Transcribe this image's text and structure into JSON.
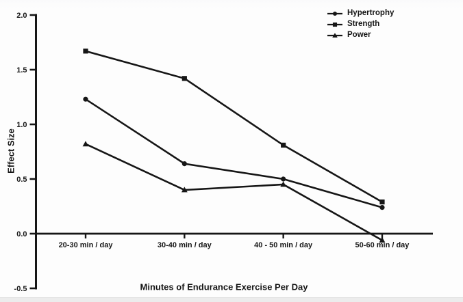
{
  "colors": {
    "ink": "#161616",
    "background": "#fdfdfd",
    "bottom_strip": "#ececec"
  },
  "legend": {
    "items": [
      "Hypertrophy",
      "Strength",
      "Power"
    ]
  },
  "chart_data": {
    "type": "line",
    "title": "",
    "xlabel": "Minutes of Endurance Exercise Per Day",
    "ylabel": "Effect Size",
    "categories": [
      "20-30 min / day",
      "30-40 min / day",
      "40 - 50 min / day",
      "50-60 min / day"
    ],
    "series": [
      {
        "name": "Hypertrophy",
        "marker": "circle",
        "values": [
          1.23,
          0.64,
          0.5,
          0.24
        ]
      },
      {
        "name": "Strength",
        "marker": "square",
        "values": [
          1.67,
          1.42,
          0.81,
          0.29
        ]
      },
      {
        "name": "Power",
        "marker": "triangle",
        "values": [
          0.82,
          0.4,
          0.45,
          -0.06
        ]
      }
    ],
    "ylim": [
      -0.5,
      2.0
    ],
    "yticks": [
      2.0,
      1.5,
      1.0,
      0.5,
      0.0,
      -0.5
    ],
    "grid": false,
    "legend_position": "top-right",
    "line_color": "#161616"
  }
}
